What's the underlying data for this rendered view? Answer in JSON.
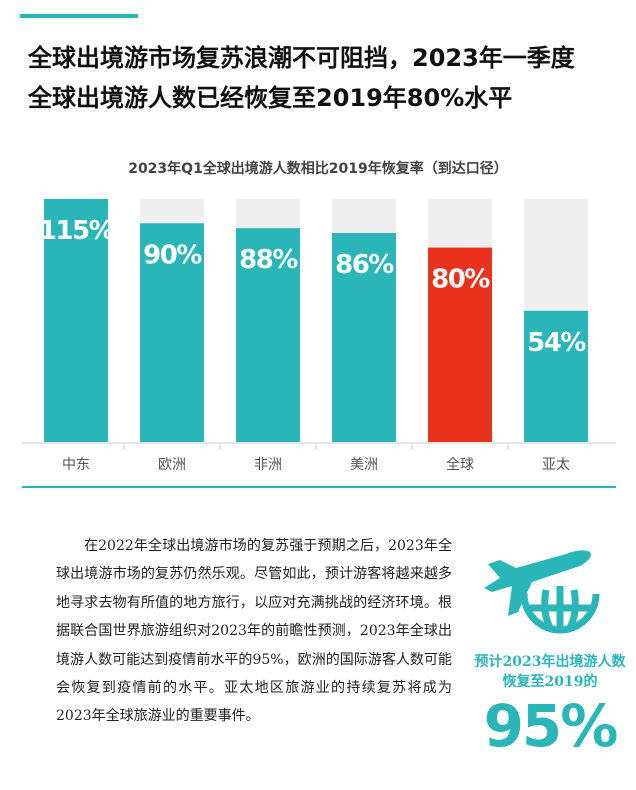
{
  "headline": {
    "line1": "全球出境游市场复苏浪潮不可阻挡，2023年一季度",
    "line2": "全球出境游人数已经恢复至2019年80%水平"
  },
  "chart_data": {
    "type": "bar",
    "title": "2023年Q1全球出境游人数相比2019年恢复率（到达口径）",
    "categories": [
      "中东",
      "欧洲",
      "非洲",
      "美洲",
      "全球",
      "亚太"
    ],
    "values": [
      115,
      90,
      88,
      86,
      80,
      54
    ],
    "value_labels": [
      "115%",
      "90%",
      "88%",
      "86%",
      "80%",
      "54%"
    ],
    "ylim": [
      0,
      100
    ],
    "colors": {
      "bar": "#2ab5b8",
      "highlight": "#e8321e",
      "track": "#efefef",
      "label": "#ffffff"
    },
    "highlight_category": "全球",
    "grid": false,
    "legend": "none"
  },
  "body": {
    "paragraph": "在2022年全球出境游市场的复苏强于预期之后，2023年全球出境游市场的复苏仍然乐观。尽管如此，预计游客将越来越多地寻求去物有所值的地方旅行，以应对充满挑战的经济环境。根据联合国世界旅游组织对2023年的前瞻性预测，2023年全球出境游人数可能达到疫情前水平的95%，欧洲的国际游客人数可能会恢复到疫情前的水平。亚太地区旅游业的持续复苏将成为2023年全球旅游业的重要事件。"
  },
  "side": {
    "icon": "airplane-globe-icon",
    "caption_line1": "预计2023年出境游人数",
    "caption_line2": "恢复至2019的",
    "value": "95%"
  }
}
